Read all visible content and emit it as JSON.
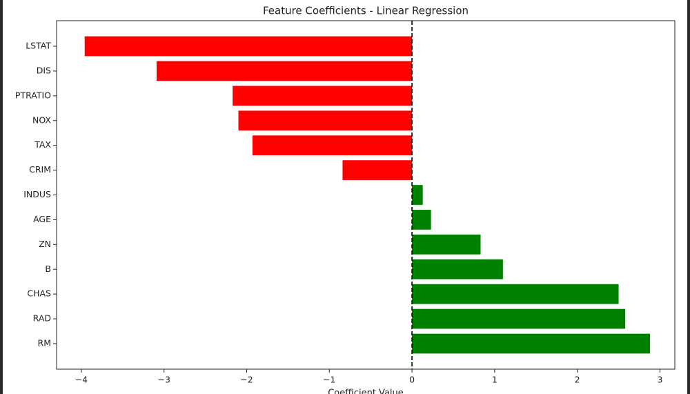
{
  "chart_data": {
    "type": "barh",
    "title": "Feature Coefficients - Linear Regression",
    "x_label": "Coefficient Value",
    "categories": [
      "LSTAT",
      "DIS",
      "PTRATIO",
      "NOX",
      "TAX",
      "CRIM",
      "INDUS",
      "AGE",
      "ZN",
      "B",
      "CHAS",
      "RAD",
      "RM"
    ],
    "values": [
      -3.96,
      -3.09,
      -2.17,
      -2.1,
      -1.93,
      -0.84,
      0.13,
      0.23,
      0.83,
      1.1,
      2.5,
      2.58,
      2.88
    ],
    "colors": [
      "#ff0000",
      "#ff0000",
      "#ff0000",
      "#ff0000",
      "#ff0000",
      "#ff0000",
      "#008000",
      "#008000",
      "#008000",
      "#008000",
      "#008000",
      "#008000",
      "#008000"
    ],
    "xlim": [
      -4.3,
      3.18
    ],
    "xticks": [
      {
        "value": -4,
        "label": "−4"
      },
      {
        "value": -3,
        "label": "−3"
      },
      {
        "value": -2,
        "label": "−2"
      },
      {
        "value": -1,
        "label": "−1"
      },
      0,
      1,
      2,
      3
    ],
    "reference_line": 0
  }
}
